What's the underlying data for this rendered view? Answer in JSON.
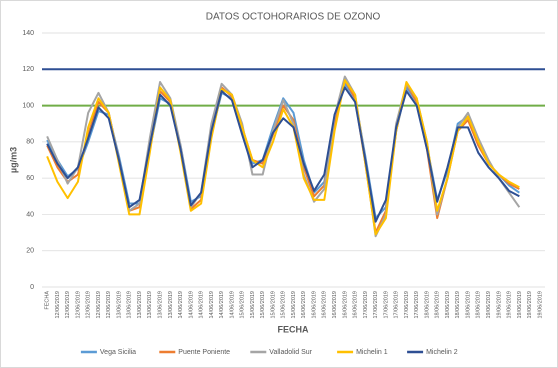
{
  "chart_data": {
    "type": "line",
    "title": "DATOS OCTOHORARIOS DE OZONO",
    "y_label": "µg/m3",
    "x_label": "FECHA",
    "categories": [
      "FECHA",
      "12/06/2019",
      "12/06/2019",
      "12/06/2019",
      "12/06/2019",
      "12/06/2019",
      "12/06/2019",
      "13/06/2019",
      "13/06/2019",
      "13/06/2019",
      "13/06/2019",
      "13/06/2019",
      "13/06/2019",
      "14/06/2019",
      "14/06/2019",
      "14/06/2019",
      "14/06/2019",
      "14/06/2019",
      "14/06/2019",
      "15/06/2019",
      "15/06/2019",
      "15/06/2019",
      "15/06/2019",
      "15/06/2019",
      "15/06/2019",
      "16/06/2019",
      "16/06/2019",
      "16/06/2019",
      "16/06/2019",
      "16/06/2019",
      "16/06/2019",
      "17/06/2019",
      "17/06/2019",
      "17/06/2019",
      "17/06/2019",
      "17/06/2019",
      "17/06/2019",
      "18/06/2019",
      "18/06/2019",
      "18/06/2019",
      "18/06/2019",
      "18/06/2019",
      "18/06/2019",
      "19/06/2019",
      "19/06/2019",
      "19/06/2019",
      "19/06/2019",
      "19/06/2019",
      "19/06/2019"
    ],
    "series": [
      {
        "name": "Vega Sicilia",
        "color": "#5b9bd5",
        "values": [
          81,
          70,
          61,
          65,
          80,
          97,
          95,
          72,
          46,
          46,
          76,
          104,
          101,
          78,
          47,
          50,
          84,
          107,
          104,
          86,
          68,
          70,
          88,
          104,
          96,
          70,
          52,
          58,
          92,
          112,
          104,
          72,
          38,
          44,
          86,
          110,
          102,
          78,
          48,
          64,
          90,
          94,
          80,
          68,
          62,
          56,
          52,
          null,
          null
        ]
      },
      {
        "name": "Puente Poniente",
        "color": "#ed7d31",
        "values": [
          78,
          66,
          58,
          62,
          84,
          102,
          96,
          70,
          42,
          44,
          76,
          108,
          102,
          77,
          43,
          48,
          84,
          110,
          105,
          88,
          70,
          68,
          84,
          100,
          92,
          66,
          50,
          56,
          90,
          114,
          104,
          68,
          30,
          42,
          86,
          112,
          102,
          76,
          38,
          60,
          86,
          92,
          78,
          68,
          62,
          57,
          54,
          null,
          null
        ]
      },
      {
        "name": "Valladolid Sur",
        "color": "#a5a5a5",
        "values": [
          83,
          70,
          57,
          66,
          96,
          107,
          96,
          70,
          42,
          46,
          82,
          113,
          104,
          78,
          44,
          52,
          90,
          112,
          106,
          90,
          62,
          62,
          86,
          103,
          90,
          62,
          47,
          54,
          94,
          116,
          106,
          70,
          28,
          40,
          90,
          112,
          104,
          80,
          40,
          60,
          88,
          96,
          82,
          70,
          60,
          52,
          44,
          null,
          null
        ]
      },
      {
        "name": "Michelin 1",
        "color": "#ffc000",
        "values": [
          72,
          58,
          49,
          58,
          88,
          104,
          96,
          68,
          40,
          40,
          74,
          110,
          103,
          74,
          42,
          46,
          82,
          109,
          106,
          88,
          70,
          66,
          80,
          98,
          88,
          60,
          48,
          48,
          86,
          114,
          106,
          68,
          29,
          38,
          86,
          113,
          104,
          80,
          42,
          60,
          86,
          94,
          80,
          68,
          62,
          58,
          55,
          null,
          null
        ]
      },
      {
        "name": "Michelin 2",
        "color": "#2e4f93",
        "values": [
          79,
          68,
          60,
          66,
          82,
          99,
          93,
          70,
          44,
          48,
          78,
          106,
          100,
          76,
          45,
          52,
          86,
          108,
          103,
          84,
          66,
          70,
          85,
          93,
          88,
          68,
          53,
          62,
          95,
          110,
          102,
          70,
          36,
          48,
          88,
          108,
          100,
          76,
          47,
          66,
          88,
          88,
          74,
          66,
          60,
          53,
          50,
          null,
          null
        ]
      }
    ],
    "reference_lines": [
      {
        "value": 120,
        "color": "#2e4f93"
      },
      {
        "value": 100,
        "color": "#70ad47"
      }
    ],
    "ylim": [
      0,
      140
    ],
    "yticks": [
      0,
      20,
      40,
      60,
      80,
      100,
      120,
      140
    ],
    "grid": true,
    "legend": "bottom"
  }
}
